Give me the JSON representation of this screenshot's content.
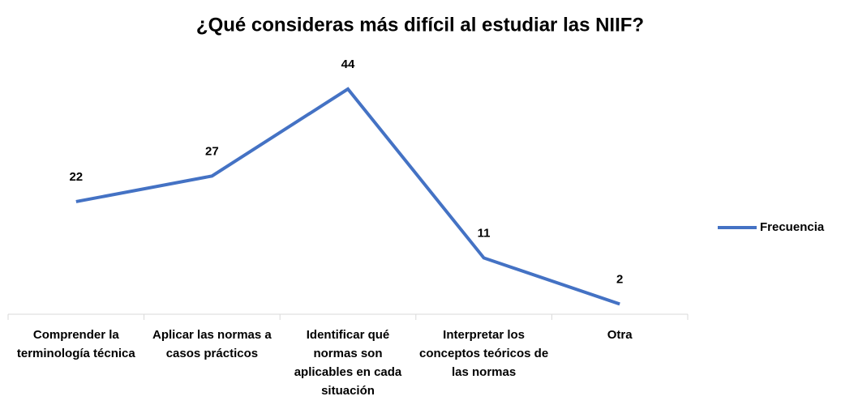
{
  "chart_data": {
    "type": "line",
    "title": "¿Qué consideras más difícil al estudiar las NIIF?",
    "categories": [
      "Comprender la terminología técnica",
      "Aplicar las normas a casos prácticos",
      "Identificar qué normas son aplicables en cada situación",
      "Interpretar los conceptos teóricos de las normas",
      "Otra"
    ],
    "series": [
      {
        "name": "Frecuencia",
        "color": "#4472c4",
        "values": [
          22,
          27,
          44,
          11,
          2
        ]
      }
    ],
    "ylim": [
      0,
      50
    ],
    "legend": "right"
  }
}
